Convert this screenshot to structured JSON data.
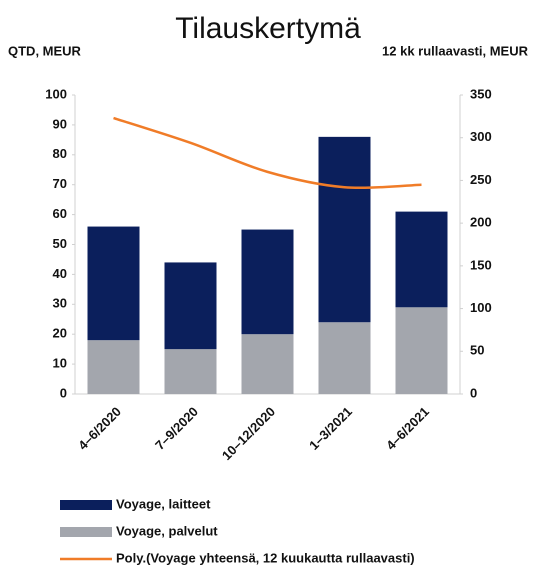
{
  "chart_data": {
    "type": "bar",
    "stacked": true,
    "title": "Tilauskertymä",
    "ylabel": "QTD, MEUR",
    "y2label": "12 kk rullaavasti, MEUR",
    "categories": [
      "4–6/2020",
      "7–9/2020",
      "10–12/2020",
      "1–3/2021",
      "4–6/2021"
    ],
    "series": [
      {
        "name": "Voyage, laitteet",
        "color": "#0b1f5c",
        "values": [
          38,
          29,
          35,
          62,
          32
        ]
      },
      {
        "name": "Voyage, palvelut",
        "color": "#a3a6ad",
        "values": [
          18,
          15,
          20,
          24,
          29
        ]
      },
      {
        "name": "Poly.(Voyage yhteensä, 12 kuukautta rullaavasti)",
        "color": "#f07c28",
        "type": "line",
        "axis": "y2",
        "values": [
          323,
          294,
          260,
          242,
          245
        ]
      }
    ],
    "ylim": [
      0,
      100
    ],
    "yticks": [
      0,
      10,
      20,
      30,
      40,
      50,
      60,
      70,
      80,
      90,
      100
    ],
    "y2lim": [
      0,
      350
    ],
    "y2ticks": [
      0,
      50,
      100,
      150,
      200,
      250,
      300,
      350
    ],
    "grid": false,
    "legend": "bottom"
  }
}
